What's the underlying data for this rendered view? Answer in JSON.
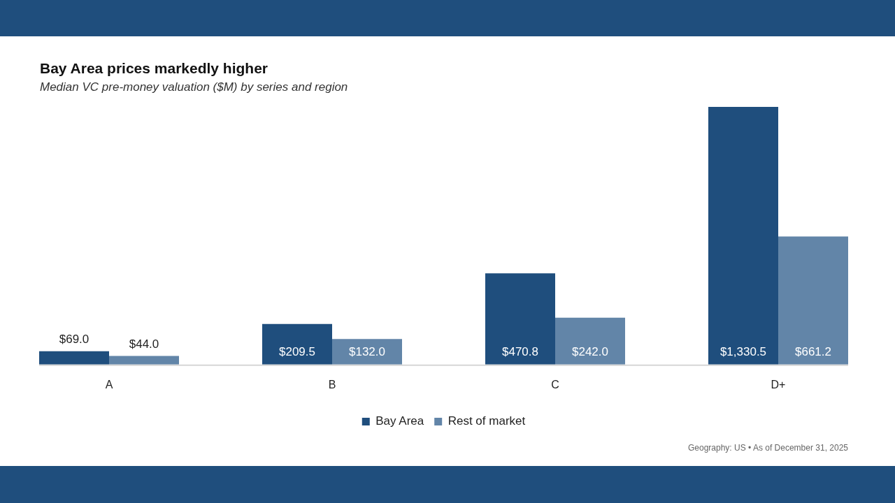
{
  "chart_data": {
    "type": "bar",
    "title": "Bay Area prices markedly higher",
    "subtitle": "Median VC pre-money valuation ($M) by series and region",
    "categories": [
      "A",
      "B",
      "C",
      "D+"
    ],
    "series": [
      {
        "name": "Bay Area",
        "color": "#1f4e7d",
        "values": [
          69.0,
          209.5,
          470.8,
          1330.5
        ],
        "value_labels": [
          "$69.0",
          "$209.5",
          "$470.8",
          "$1,330.5"
        ]
      },
      {
        "name": "Rest of market",
        "color": "#6285a8",
        "values": [
          44.0,
          132.0,
          242.0,
          661.2
        ],
        "value_labels": [
          "$44.0",
          "$132.0",
          "$242.0",
          "$661.2"
        ]
      }
    ],
    "legend": "bottom",
    "annotations": [
      "Geography: US • As of December 31, 2025"
    ]
  }
}
